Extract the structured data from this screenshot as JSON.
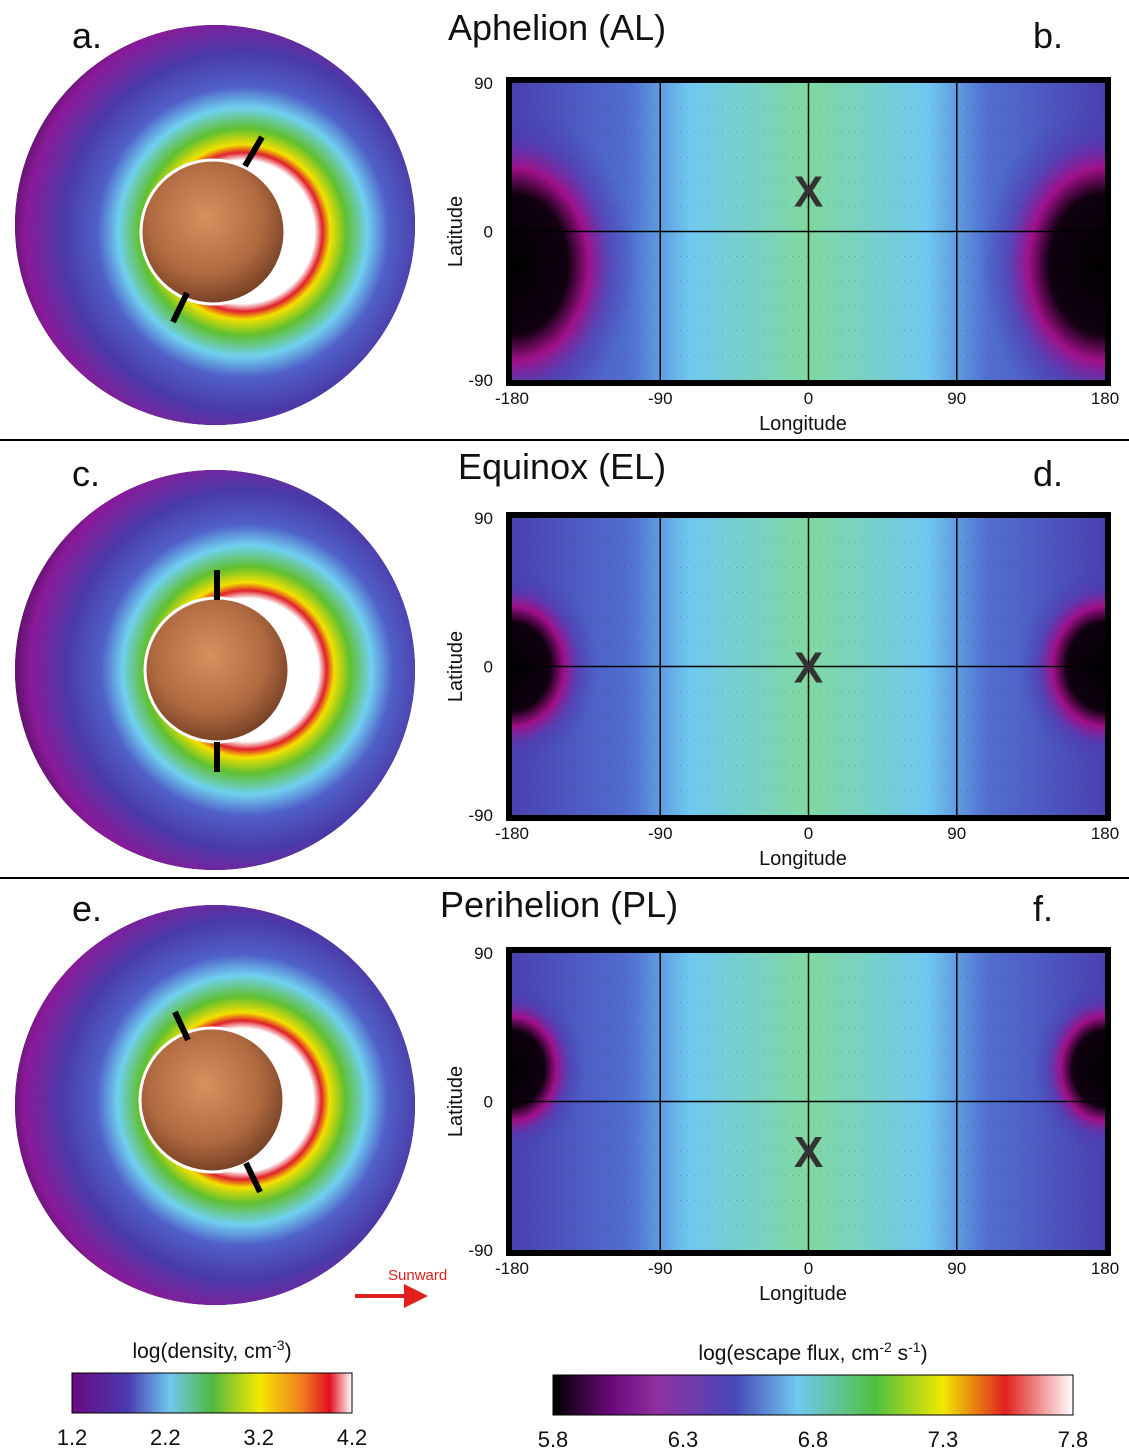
{
  "panels": [
    {
      "letter": "a.",
      "map_letter": "b.",
      "title": "Aphelion (AL)",
      "x_label": "Longitude",
      "y_label": "Latitude",
      "xticks": [
        -180,
        -90,
        0,
        90,
        180
      ],
      "yticks": [
        -90,
        0,
        90
      ],
      "marker": "X"
    },
    {
      "letter": "c.",
      "map_letter": "d.",
      "title": "Equinox (EL)",
      "x_label": "Longitude",
      "y_label": "Latitude",
      "xticks": [
        -180,
        -90,
        0,
        90,
        180
      ],
      "yticks": [
        -90,
        0,
        90
      ],
      "marker": "X"
    },
    {
      "letter": "e.",
      "map_letter": "f.",
      "title": "Perihelion (PL)",
      "x_label": "Longitude",
      "y_label": "Latitude",
      "xticks": [
        -180,
        -90,
        0,
        90,
        180
      ],
      "yticks": [
        -90,
        0,
        90
      ],
      "marker": "X"
    }
  ],
  "sunward": "Sunward",
  "density_colorbar": {
    "label_parts": [
      {
        "text": "log(density, cm"
      },
      {
        "sup": "-3"
      },
      {
        "text": ")"
      }
    ],
    "ticks": [
      1.2,
      2.2,
      3.2,
      4.2
    ]
  },
  "flux_colorbar": {
    "label_parts": [
      {
        "text": "log(escape flux, cm"
      },
      {
        "sup": "-2"
      },
      {
        "text": " s"
      },
      {
        "sup": "-1"
      },
      {
        "text": ")"
      }
    ],
    "ticks": [
      5.8,
      6.3,
      6.8,
      7.3,
      7.8
    ]
  }
}
